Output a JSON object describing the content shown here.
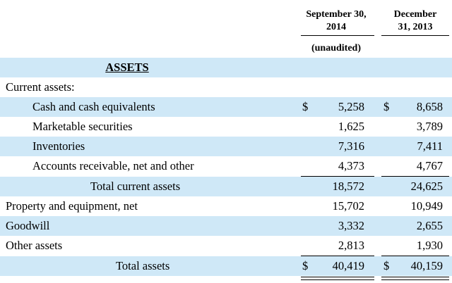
{
  "header": {
    "col_a": "September 30, 2014",
    "col_a_line1": "September 30,",
    "col_a_line2": "2014",
    "col_b_line1": "December",
    "col_b_line2": "31, 2013",
    "unaudited": "(unaudited)"
  },
  "section_title": "ASSETS",
  "rows": [
    {
      "label": "Current assets:",
      "a_cur": "",
      "a": "",
      "b_cur": "",
      "b": ""
    },
    {
      "label": "Cash and cash equivalents",
      "a_cur": "$",
      "a": "5,258",
      "b_cur": "$",
      "b": "8,658"
    },
    {
      "label": "Marketable securities",
      "a_cur": "",
      "a": "1,625",
      "b_cur": "",
      "b": "3,789"
    },
    {
      "label": "Inventories",
      "a_cur": "",
      "a": "7,316",
      "b_cur": "",
      "b": "7,411"
    },
    {
      "label": "Accounts receivable, net and other",
      "a_cur": "",
      "a": "4,373",
      "b_cur": "",
      "b": "4,767"
    },
    {
      "label": "Total current assets",
      "a_cur": "",
      "a": "18,572",
      "b_cur": "",
      "b": "24,625"
    },
    {
      "label": "Property and equipment, net",
      "a_cur": "",
      "a": "15,702",
      "b_cur": "",
      "b": "10,949"
    },
    {
      "label": "Goodwill",
      "a_cur": "",
      "a": "3,332",
      "b_cur": "",
      "b": "2,655"
    },
    {
      "label": "Other assets",
      "a_cur": "",
      "a": "2,813",
      "b_cur": "",
      "b": "1,930"
    },
    {
      "label": "Total assets",
      "a_cur": "$",
      "a": "40,419",
      "b_cur": "$",
      "b": "40,159"
    }
  ]
}
